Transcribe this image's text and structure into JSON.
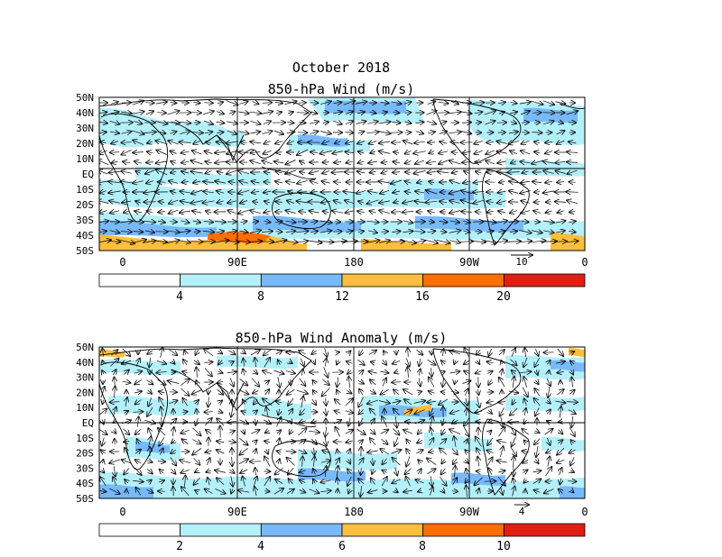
{
  "figure_title": "October 2018",
  "panels": [
    {
      "id": "total",
      "title": "850-hPa Wind (m/s)",
      "lat_labels": [
        "50N",
        "40N",
        "30N",
        "20N",
        "10N",
        "EQ",
        "10S",
        "20S",
        "30S",
        "40S",
        "50S"
      ],
      "lon_labels": [
        "0",
        "90E",
        "180",
        "90W",
        "0"
      ],
      "reference_vector": "10",
      "colorbar": {
        "labels": [
          "4",
          "8",
          "12",
          "16",
          "20"
        ],
        "colors": [
          "#ffffff",
          "#b4f0fa",
          "#78b9fa",
          "#ffbe3c",
          "#ff6e00",
          "#e11e14"
        ]
      }
    },
    {
      "id": "anomaly",
      "title": "850-hPa Wind Anomaly (m/s)",
      "lat_labels": [
        "50N",
        "40N",
        "30N",
        "20N",
        "10N",
        "EQ",
        "10S",
        "20S",
        "30S",
        "40S",
        "50S"
      ],
      "lon_labels": [
        "0",
        "90E",
        "180",
        "90W",
        "0"
      ],
      "reference_vector": "4",
      "colorbar": {
        "labels": [
          "2",
          "4",
          "6",
          "8",
          "10"
        ],
        "colors": [
          "#ffffff",
          "#b4f0fa",
          "#78b9fa",
          "#ffbe3c",
          "#ff6e00",
          "#e11e14"
        ]
      }
    }
  ]
}
